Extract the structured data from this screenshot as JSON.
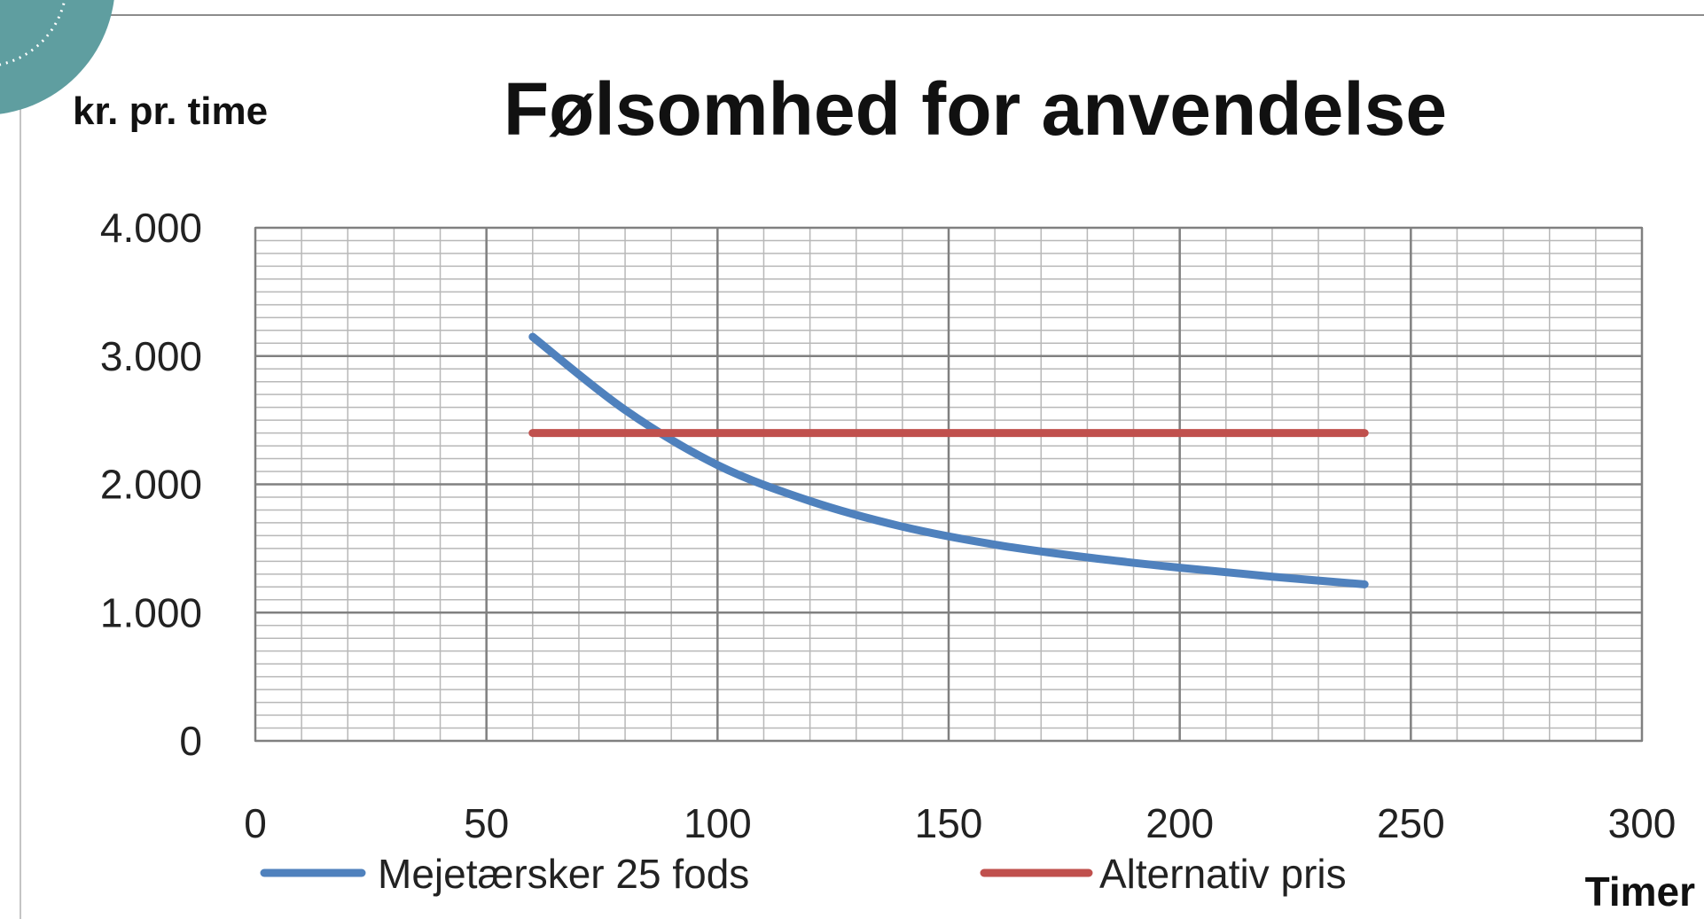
{
  "colors": {
    "series_blue": "#4f81bd",
    "series_red": "#c0504d",
    "grid_major": "#808080",
    "grid_minor": "#b8b8b8",
    "ornament": "#5f9ea0"
  },
  "chart_data": {
    "type": "line",
    "title": "Følsomhed for anvendelse",
    "ylabel": "kr. pr. time",
    "xlabel": "Timer",
    "xlim": [
      0,
      300
    ],
    "ylim": [
      0,
      4000
    ],
    "x_ticks": [
      0,
      50,
      100,
      150,
      200,
      250,
      300
    ],
    "x_tick_labels": [
      "0",
      "50",
      "100",
      "150",
      "200",
      "250",
      "300"
    ],
    "y_ticks": [
      0,
      1000,
      2000,
      3000,
      4000
    ],
    "y_tick_labels": [
      "0",
      "1.000",
      "2.000",
      "3.000",
      "4.000"
    ],
    "grid": true,
    "legend_position": "bottom",
    "series": [
      {
        "name": "Mejetærsker 25 fods",
        "color": "#4f81bd",
        "x": [
          60,
          80,
          100,
          120,
          140,
          160,
          180,
          200,
          220,
          240
        ],
        "values": [
          3150,
          2580,
          2150,
          1870,
          1670,
          1530,
          1430,
          1350,
          1280,
          1220
        ]
      },
      {
        "name": "Alternativ pris",
        "color": "#c0504d",
        "x": [
          60,
          240
        ],
        "values": [
          2400,
          2400
        ]
      }
    ]
  }
}
